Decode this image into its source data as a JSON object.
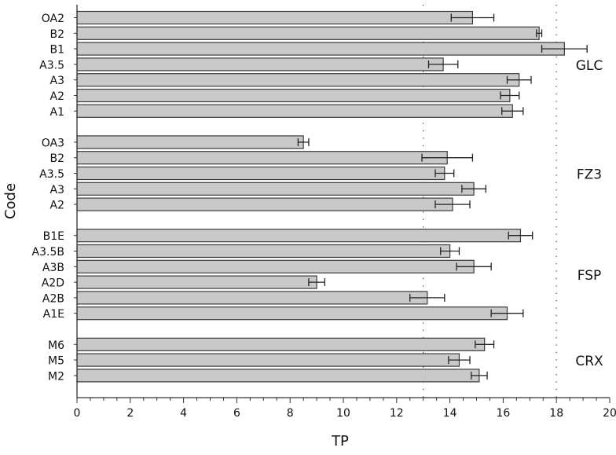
{
  "chart_data": {
    "type": "bar",
    "orientation": "horizontal",
    "title": "",
    "xlabel": "TP",
    "ylabel": "Code",
    "xlim": [
      0,
      20
    ],
    "x_ticks": [
      "0",
      "2",
      "4",
      "6",
      "8",
      "10",
      "12",
      "14",
      "16",
      "18",
      "20"
    ],
    "reference_lines": [
      13,
      18
    ],
    "colors": {
      "bar_fill": "#c9c9c9",
      "bar_stroke": "#3a3a3a",
      "axis": "#333333",
      "reference_line": "#666666"
    },
    "groups": [
      {
        "name": "GLC",
        "bars": [
          {
            "label": "OA2",
            "value": 14.85,
            "error": 0.8
          },
          {
            "label": "B2",
            "value": 17.35,
            "error": 0.1
          },
          {
            "label": "B1",
            "value": 18.3,
            "error": 0.85
          },
          {
            "label": "A3.5",
            "value": 13.75,
            "error": 0.55
          },
          {
            "label": "A3",
            "value": 16.6,
            "error": 0.45
          },
          {
            "label": "A2",
            "value": 16.25,
            "error": 0.35
          },
          {
            "label": "A1",
            "value": 16.35,
            "error": 0.4
          }
        ]
      },
      {
        "name": "FZ3",
        "bars": [
          {
            "label": "OA3",
            "value": 8.5,
            "error": 0.2
          },
          {
            "label": "B2",
            "value": 13.9,
            "error": 0.95
          },
          {
            "label": "A3.5",
            "value": 13.8,
            "error": 0.35
          },
          {
            "label": "A3",
            "value": 14.9,
            "error": 0.45
          },
          {
            "label": "A2",
            "value": 14.1,
            "error": 0.65
          }
        ]
      },
      {
        "name": "FSP",
        "bars": [
          {
            "label": "B1E",
            "value": 16.65,
            "error": 0.45
          },
          {
            "label": "A3.5B",
            "value": 14.0,
            "error": 0.35
          },
          {
            "label": "A3B",
            "value": 14.9,
            "error": 0.65
          },
          {
            "label": "A2D",
            "value": 9.0,
            "error": 0.3
          },
          {
            "label": "A2B",
            "value": 13.15,
            "error": 0.65
          },
          {
            "label": "A1E",
            "value": 16.15,
            "error": 0.6
          }
        ]
      },
      {
        "name": "CRX",
        "bars": [
          {
            "label": "M6",
            "value": 15.3,
            "error": 0.35
          },
          {
            "label": "M5",
            "value": 14.35,
            "error": 0.4
          },
          {
            "label": "M2",
            "value": 15.1,
            "error": 0.3
          }
        ]
      }
    ]
  }
}
